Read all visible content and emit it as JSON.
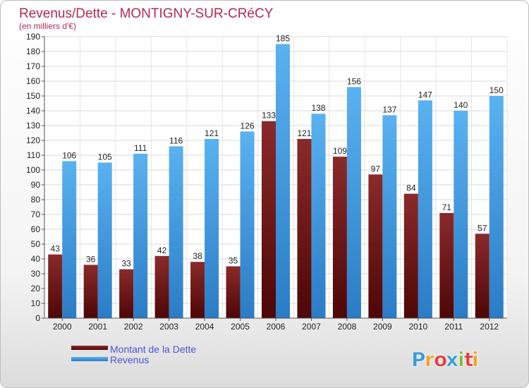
{
  "chart_data": {
    "type": "bar",
    "title": "Revenus/Dette - MONTIGNY-SUR-CRéCY",
    "subtitle": "(en milliers d'€)",
    "categories": [
      "2000",
      "2001",
      "2002",
      "2003",
      "2004",
      "2005",
      "2006",
      "2007",
      "2008",
      "2009",
      "2010",
      "2011",
      "2012"
    ],
    "series": [
      {
        "name": "Montant de la Dette",
        "values": [
          43,
          36,
          33,
          42,
          38,
          35,
          133,
          121,
          109,
          97,
          84,
          71,
          57
        ],
        "color": "#7a1a1a"
      },
      {
        "name": "Revenus",
        "values": [
          106,
          105,
          111,
          116,
          121,
          126,
          185,
          138,
          156,
          137,
          147,
          140,
          150
        ],
        "color": "#4aa0e6"
      }
    ],
    "ylim": [
      0,
      190
    ],
    "yticks": [
      0,
      10,
      20,
      30,
      40,
      50,
      60,
      70,
      80,
      90,
      100,
      110,
      120,
      130,
      140,
      150,
      160,
      170,
      180,
      190
    ],
    "grid": true,
    "legend_position": "bottom-left"
  },
  "branding": {
    "logo_letters": [
      "P",
      "r",
      "o",
      "x",
      "i",
      "t",
      "i"
    ],
    "logo_colors": [
      "#3a9bd9",
      "#f0a020",
      "#e04040",
      "#3a9bd9",
      "#7cc040",
      "#e04040",
      "#f0a020"
    ]
  }
}
